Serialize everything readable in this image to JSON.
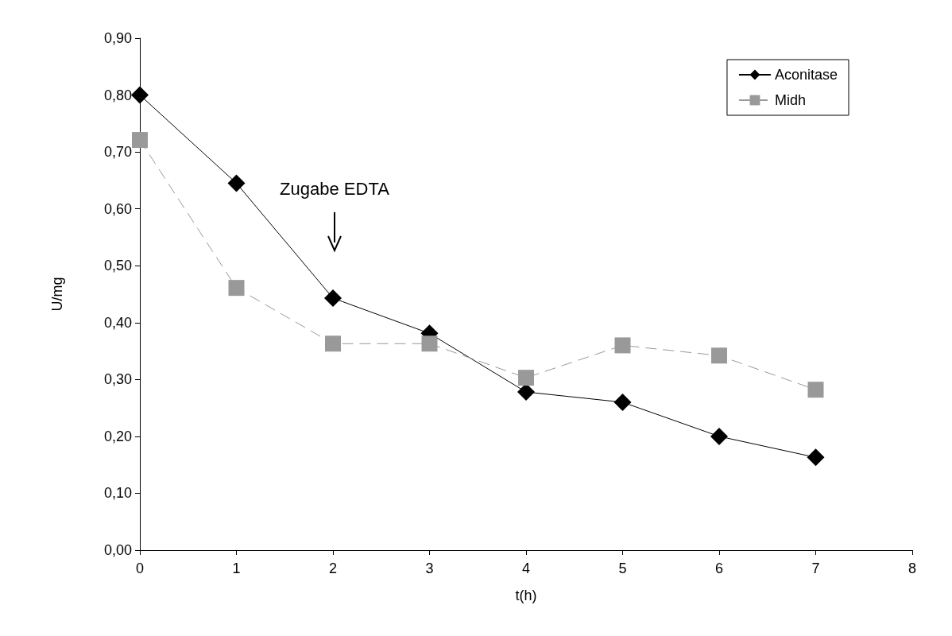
{
  "chart_data": {
    "type": "line",
    "xlabel": "t(h)",
    "ylabel": "U/mg",
    "x": [
      0,
      1,
      2,
      3,
      4,
      5,
      6,
      7
    ],
    "series": [
      {
        "name": "Aconitase",
        "color": "#000000",
        "marker": "diamond",
        "line_style": "solid",
        "values": [
          0.8,
          0.645,
          0.443,
          0.381,
          0.278,
          0.26,
          0.2,
          0.163
        ]
      },
      {
        "name": "Midh",
        "color": "#999999",
        "marker": "square",
        "line_style": "dashed",
        "values": [
          0.721,
          0.461,
          0.363,
          0.363,
          0.303,
          0.36,
          0.342,
          0.282
        ]
      }
    ],
    "xlim": [
      0,
      8
    ],
    "xticks": [
      0,
      1,
      2,
      3,
      4,
      5,
      6,
      7,
      8
    ],
    "ylim": [
      0,
      0.9
    ],
    "yticks": [
      {
        "value": 0,
        "label": "0,00"
      },
      {
        "value": 0.1,
        "label": "0,10"
      },
      {
        "value": 0.2,
        "label": "0,20"
      },
      {
        "value": 0.3,
        "label": "0,30"
      },
      {
        "value": 0.4,
        "label": "0,40"
      },
      {
        "value": 0.5,
        "label": "0,50"
      },
      {
        "value": 0.6,
        "label": "0,60"
      },
      {
        "value": 0.7,
        "label": "0,70"
      },
      {
        "value": 0.8,
        "label": "0,80"
      },
      {
        "value": 0.9,
        "label": "0,90"
      }
    ],
    "grid": false,
    "legend": "top right",
    "annotations": [
      "Zugabe EDTA"
    ]
  }
}
